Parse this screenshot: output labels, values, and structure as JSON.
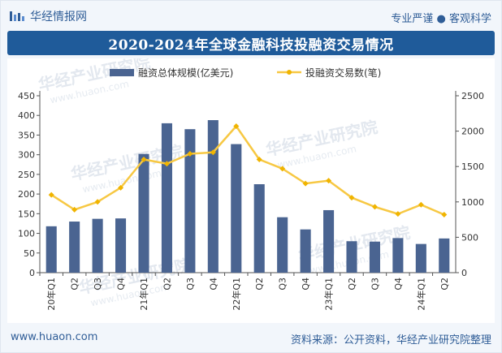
{
  "header": {
    "logo_text": "华经情报网",
    "slogan": "专业严谨 ● 客观科学"
  },
  "footer": {
    "website": "www.huaon.com",
    "source": "资料来源：公开资料，华经产业研究院整理"
  },
  "watermark_text": "华经产业研究院",
  "watermark_url": "www.huaon.com",
  "colors": {
    "title_bg": "#1f5b9a",
    "bar": "#4a6491",
    "line": "#f7c843",
    "line_marker": "#f0b400"
  },
  "chart_data": {
    "type": "bar+line",
    "title": "2020-2024年全球金融科技投融资交易情况",
    "categories": [
      "20年Q1",
      "Q2",
      "Q3",
      "Q4",
      "21年Q1",
      "Q2",
      "Q3",
      "Q4",
      "22年Q1",
      "Q2",
      "Q3",
      "Q4",
      "23年Q1",
      "Q2",
      "Q3",
      "Q4",
      "24年Q1",
      "Q2"
    ],
    "series": [
      {
        "name": "融资总体规模(亿美元)",
        "type": "bar",
        "axis": "left",
        "values": [
          118,
          130,
          137,
          138,
          302,
          380,
          365,
          388,
          327,
          225,
          141,
          110,
          159,
          80,
          79,
          88,
          73,
          87
        ]
      },
      {
        "name": "投融资交易数(笔)",
        "type": "line",
        "axis": "right",
        "values": [
          1100,
          890,
          1000,
          1200,
          1600,
          1540,
          1680,
          1700,
          2070,
          1600,
          1470,
          1260,
          1300,
          1060,
          930,
          830,
          960,
          820
        ]
      }
    ],
    "y_left": {
      "min": 0,
      "max": 450,
      "ticks": [
        0,
        50,
        100,
        150,
        200,
        250,
        300,
        350,
        400,
        450
      ]
    },
    "y_right": {
      "min": 0,
      "max": 2500,
      "ticks": [
        0,
        500,
        1000,
        1500,
        2000,
        2500
      ]
    },
    "legend_position": "top-center",
    "grid": false
  }
}
